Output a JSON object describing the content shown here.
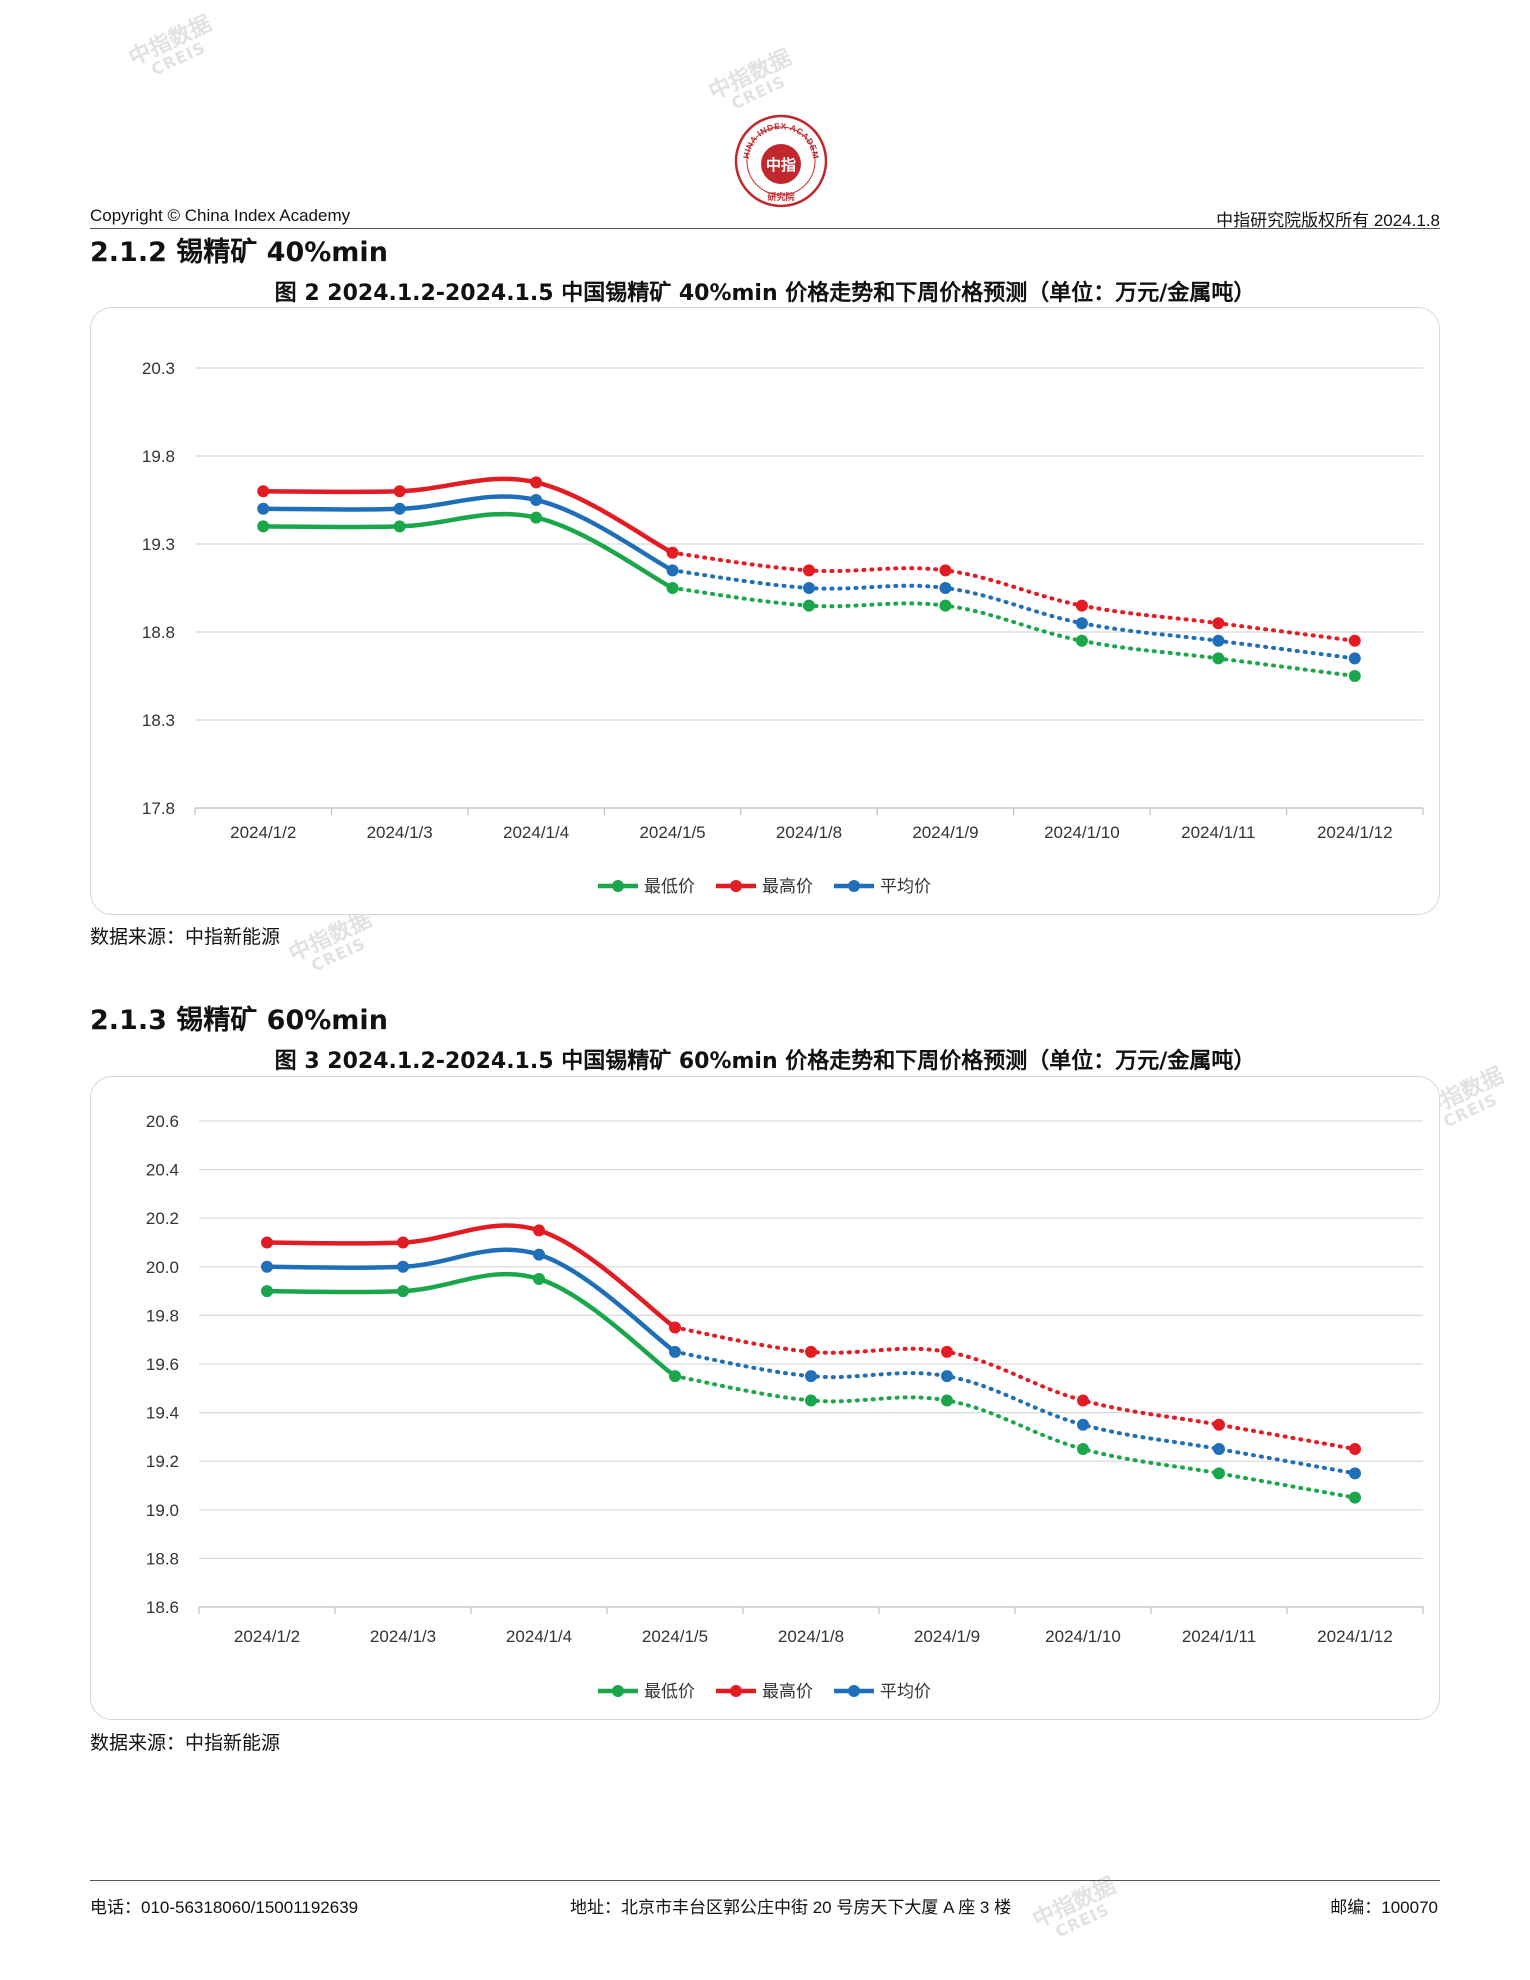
{
  "header": {
    "copyright": "Copyright © China Index Academy",
    "rights": "中指研究院版权所有 2024.1.8"
  },
  "logo": {
    "ring_text": "CHINA INDEX ACADEMY",
    "center": "中指",
    "bottom": "研究院",
    "color": "#c0282d"
  },
  "watermark": {
    "cn": "中指数据",
    "en": "CREIS"
  },
  "colors": {
    "low": "#1aa64a",
    "high": "#e31b23",
    "avg": "#1f6fb8"
  },
  "sections": [
    {
      "title": "2.1.2 锡精矿 40%min",
      "figure_title": "图 2 2024.1.2-2024.1.5 中国锡精矿 40%min 价格走势和下周价格预测（单位：万元/金属吨）",
      "source": "数据来源：中指新能源"
    },
    {
      "title": "2.1.3 锡精矿 60%min",
      "figure_title": "图 3 2024.1.2-2024.1.5 中国锡精矿 60%min 价格走势和下周价格预测（单位：万元/金属吨）",
      "source": "数据来源：中指新能源"
    }
  ],
  "chart_data": [
    {
      "type": "line",
      "title": "图 2 2024.1.2-2024.1.5 中国锡精矿 40%min 价格走势和下周价格预测（单位：万元/金属吨）",
      "xlabel": "",
      "ylabel": "",
      "categories": [
        "2024/1/2",
        "2024/1/3",
        "2024/1/4",
        "2024/1/5",
        "2024/1/8",
        "2024/1/9",
        "2024/1/10",
        "2024/1/11",
        "2024/1/12"
      ],
      "ylim": [
        17.8,
        20.3
      ],
      "yticks": [
        "20.3",
        "19.8",
        "19.3",
        "18.8",
        "18.3",
        "17.8"
      ],
      "grid": true,
      "legend_position": "bottom",
      "actual_through": "2024/1/5",
      "forecast_style": "dotted",
      "series": [
        {
          "name": "最低价",
          "key": "low",
          "values": [
            19.4,
            19.4,
            19.45,
            19.05,
            18.95,
            18.95,
            18.75,
            18.65,
            18.55
          ]
        },
        {
          "name": "最高价",
          "key": "high",
          "values": [
            19.6,
            19.6,
            19.65,
            19.25,
            19.15,
            19.15,
            18.95,
            18.85,
            18.75
          ]
        },
        {
          "name": "平均价",
          "key": "avg",
          "values": [
            19.5,
            19.5,
            19.55,
            19.15,
            19.05,
            19.05,
            18.85,
            18.75,
            18.65
          ]
        }
      ]
    },
    {
      "type": "line",
      "title": "图 3 2024.1.2-2024.1.5 中国锡精矿 60%min 价格走势和下周价格预测（单位：万元/金属吨）",
      "xlabel": "",
      "ylabel": "",
      "categories": [
        "2024/1/2",
        "2024/1/3",
        "2024/1/4",
        "2024/1/5",
        "2024/1/8",
        "2024/1/9",
        "2024/1/10",
        "2024/1/11",
        "2024/1/12"
      ],
      "ylim": [
        18.6,
        20.6
      ],
      "yticks": [
        "20.6",
        "20.4",
        "20.2",
        "20.0",
        "19.8",
        "19.6",
        "19.4",
        "19.2",
        "19.0",
        "18.8",
        "18.6"
      ],
      "grid": true,
      "legend_position": "bottom",
      "actual_through": "2024/1/5",
      "forecast_style": "dotted",
      "series": [
        {
          "name": "最低价",
          "key": "low",
          "values": [
            19.9,
            19.9,
            19.95,
            19.55,
            19.45,
            19.45,
            19.25,
            19.15,
            19.05
          ]
        },
        {
          "name": "最高价",
          "key": "high",
          "values": [
            20.1,
            20.1,
            20.15,
            19.75,
            19.65,
            19.65,
            19.45,
            19.35,
            19.25
          ]
        },
        {
          "name": "平均价",
          "key": "avg",
          "values": [
            20.0,
            20.0,
            20.05,
            19.65,
            19.55,
            19.55,
            19.35,
            19.25,
            19.15
          ]
        }
      ]
    }
  ],
  "footer": {
    "phone": "电话：010-56318060/15001192639",
    "address": "地址：北京市丰台区郭公庄中街 20 号房天下大厦 A 座 3 楼",
    "postcode": "邮编：100070"
  }
}
